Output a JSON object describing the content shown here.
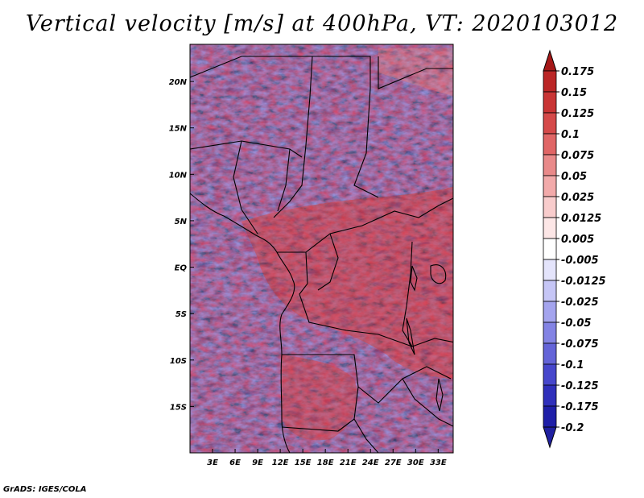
{
  "title": "Vertical velocity [m/s] at 400hPa, VT: 2020103012",
  "credit": "GrADS: IGES/COLA",
  "map": {
    "lon_range": [
      0,
      35
    ],
    "lat_range": [
      -20,
      24
    ],
    "lat_ticks": [
      {
        "value": 20,
        "label": "20N"
      },
      {
        "value": 15,
        "label": "15N"
      },
      {
        "value": 10,
        "label": "10N"
      },
      {
        "value": 5,
        "label": "5N"
      },
      {
        "value": 0,
        "label": "EQ"
      },
      {
        "value": -5,
        "label": "5S"
      },
      {
        "value": -10,
        "label": "10S"
      },
      {
        "value": -15,
        "label": "15S"
      }
    ],
    "lon_ticks": [
      {
        "value": 3,
        "label": "3E"
      },
      {
        "value": 6,
        "label": "6E"
      },
      {
        "value": 9,
        "label": "9E"
      },
      {
        "value": 12,
        "label": "12E"
      },
      {
        "value": 15,
        "label": "15E"
      },
      {
        "value": 18,
        "label": "18E"
      },
      {
        "value": 21,
        "label": "21E"
      },
      {
        "value": 24,
        "label": "24E"
      },
      {
        "value": 27,
        "label": "27E"
      },
      {
        "value": 30,
        "label": "30E"
      },
      {
        "value": 33,
        "label": "33E"
      }
    ]
  },
  "colorbar": {
    "levels": [
      {
        "label": "0.175",
        "color": "#ab1d1d"
      },
      {
        "label": "0.15",
        "color": "#bb2626"
      },
      {
        "label": "0.125",
        "color": "#c93535"
      },
      {
        "label": "0.1",
        "color": "#d54a4a"
      },
      {
        "label": "0.075",
        "color": "#e06666"
      },
      {
        "label": "0.05",
        "color": "#e98a8a"
      },
      {
        "label": "0.025",
        "color": "#f2aaaa"
      },
      {
        "label": "0.0125",
        "color": "#f8cccc"
      },
      {
        "label": "0.005",
        "color": "#fce6e6"
      },
      {
        "label": "-0.005",
        "color": "#ffffff"
      },
      {
        "label": "-0.0125",
        "color": "#e4e4fb"
      },
      {
        "label": "-0.025",
        "color": "#c6c6f6"
      },
      {
        "label": "-0.05",
        "color": "#a4a4ee"
      },
      {
        "label": "-0.075",
        "color": "#8383e4"
      },
      {
        "label": "-0.1",
        "color": "#6464d8"
      },
      {
        "label": "-0.125",
        "color": "#4747cc"
      },
      {
        "label": "-0.175",
        "color": "#3030bb"
      },
      {
        "label": "-0.2",
        "color": "#1f1fa8"
      }
    ],
    "top_arrow_color": "#a51818",
    "bottom_arrow_color": "#2020a0"
  }
}
